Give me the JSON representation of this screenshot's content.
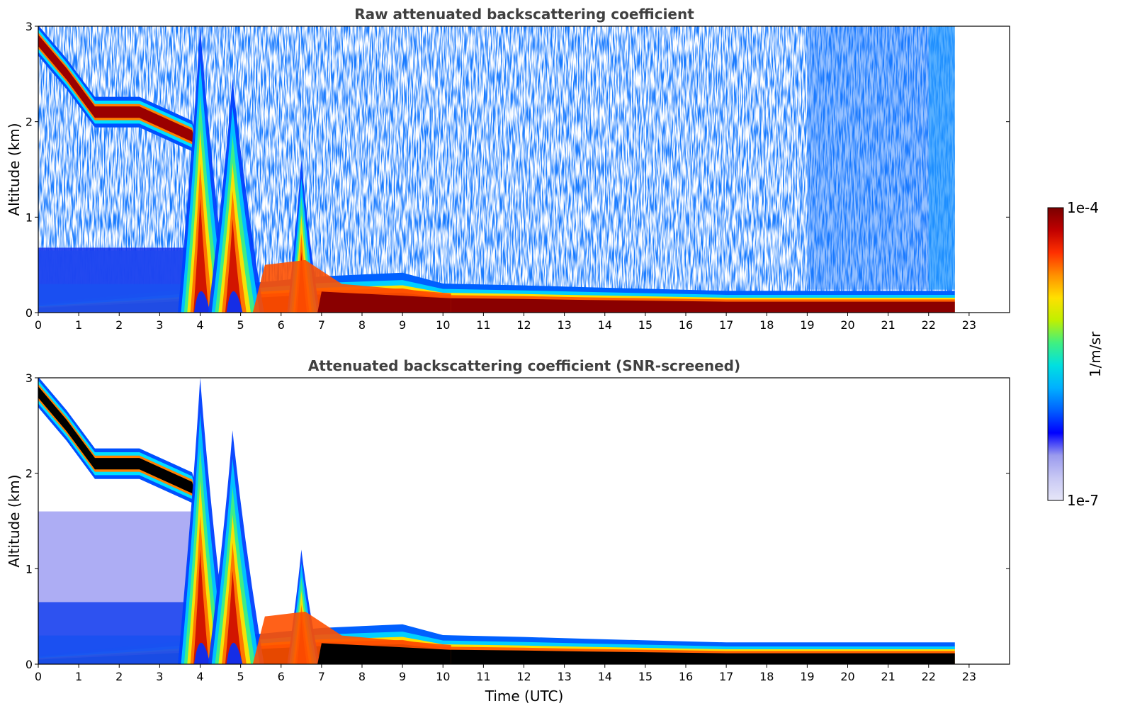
{
  "chart_data": [
    {
      "type": "heatmap",
      "title": "Raw attenuated backscattering coefficient",
      "xlabel": "",
      "ylabel": "Altitude (km)",
      "xlim": [
        0,
        24
      ],
      "ylim": [
        0,
        3
      ],
      "xticks": [
        "0",
        "1",
        "2",
        "3",
        "4",
        "5",
        "6",
        "7",
        "8",
        "9",
        "10",
        "11",
        "12",
        "13",
        "14",
        "15",
        "16",
        "17",
        "18",
        "19",
        "20",
        "21",
        "22",
        "23"
      ],
      "yticks": [
        "0",
        "1",
        "2",
        "3"
      ],
      "data_end_time": 22.65,
      "features": {
        "surface_layer_top_km": [
          [
            0,
            0.05
          ],
          [
            7,
            0.2
          ],
          [
            9,
            0.22
          ],
          [
            10,
            0.16
          ],
          [
            12,
            0.15
          ],
          [
            13.5,
            0.14
          ],
          [
            17,
            0.12
          ],
          [
            22.65,
            0.12
          ]
        ],
        "cloud_layer_km": [
          [
            0,
            2.85
          ],
          [
            0.7,
            2.5
          ],
          [
            1.4,
            2.1
          ],
          [
            2.5,
            2.1
          ],
          [
            3.8,
            1.85
          ],
          [
            4.05,
            1.5
          ]
        ],
        "plume_peaks": [
          {
            "time": 4.0,
            "top_km": 3.0
          },
          {
            "time": 4.8,
            "top_km": 2.45
          },
          {
            "time": 6.5,
            "top_km": 1.6
          }
        ],
        "noise_level": "high"
      }
    },
    {
      "type": "heatmap",
      "title": "Attenuated backscattering coefficient (SNR-screened)",
      "xlabel": "Time (UTC)",
      "ylabel": "Altitude (km)",
      "xlim": [
        0,
        24
      ],
      "ylim": [
        0,
        3
      ],
      "xticks": [
        "0",
        "1",
        "2",
        "3",
        "4",
        "5",
        "6",
        "7",
        "8",
        "9",
        "10",
        "11",
        "12",
        "13",
        "14",
        "15",
        "16",
        "17",
        "18",
        "19",
        "20",
        "21",
        "22",
        "23"
      ],
      "yticks": [
        "0",
        "1",
        "2",
        "3"
      ],
      "data_end_time": 22.65,
      "features": {
        "surface_layer_top_km": [
          [
            0,
            0.05
          ],
          [
            7,
            0.2
          ],
          [
            9,
            0.22
          ],
          [
            10,
            0.16
          ],
          [
            12,
            0.15
          ],
          [
            13.5,
            0.14
          ],
          [
            17,
            0.12
          ],
          [
            22.65,
            0.12
          ]
        ],
        "cloud_layer_km": [
          [
            0,
            2.85
          ],
          [
            0.7,
            2.5
          ],
          [
            1.4,
            2.1
          ],
          [
            2.5,
            2.1
          ],
          [
            3.8,
            1.85
          ],
          [
            4.05,
            1.5
          ]
        ],
        "plume_peaks": [
          {
            "time": 4.0,
            "top_km": 3.0
          },
          {
            "time": 4.8,
            "top_km": 2.45
          },
          {
            "time": 6.5,
            "top_km": 1.2
          }
        ],
        "noise_level": "screened"
      }
    }
  ],
  "colorbar": {
    "label": "1/m/sr",
    "max_label": "1e-4",
    "min_label": "1e-7",
    "scale": "log",
    "colormap": [
      "#e6e6f8",
      "#c8c8f4",
      "#9a9aee",
      "#0000ff",
      "#0060ff",
      "#00b0ff",
      "#00e0e0",
      "#40f080",
      "#c0f000",
      "#ffe000",
      "#ff9000",
      "#ff3000",
      "#c00000",
      "#7a0000"
    ]
  }
}
